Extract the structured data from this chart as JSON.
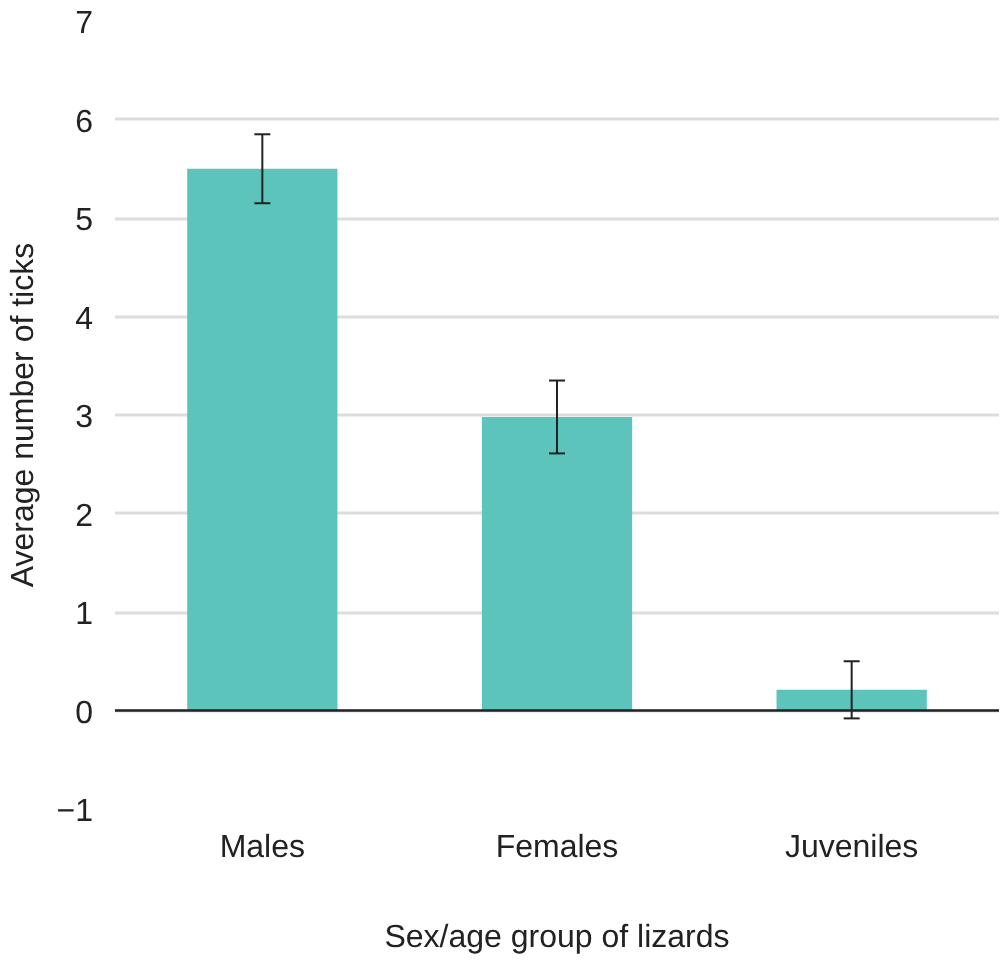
{
  "chart_data": {
    "type": "bar",
    "xlabel": "Sex/age group of lizards",
    "ylabel": "Average number of ticks",
    "categories": [
      "Males",
      "Females",
      "Juveniles"
    ],
    "values": [
      5.5,
      2.98,
      0.21
    ],
    "errors": [
      0.35,
      0.37,
      0.29
    ],
    "color": "#5cc4bb",
    "ylim": [
      -1,
      7
    ],
    "yticks": [
      -1,
      0,
      1,
      2,
      3,
      4,
      5,
      6,
      7
    ],
    "grid": "y"
  }
}
